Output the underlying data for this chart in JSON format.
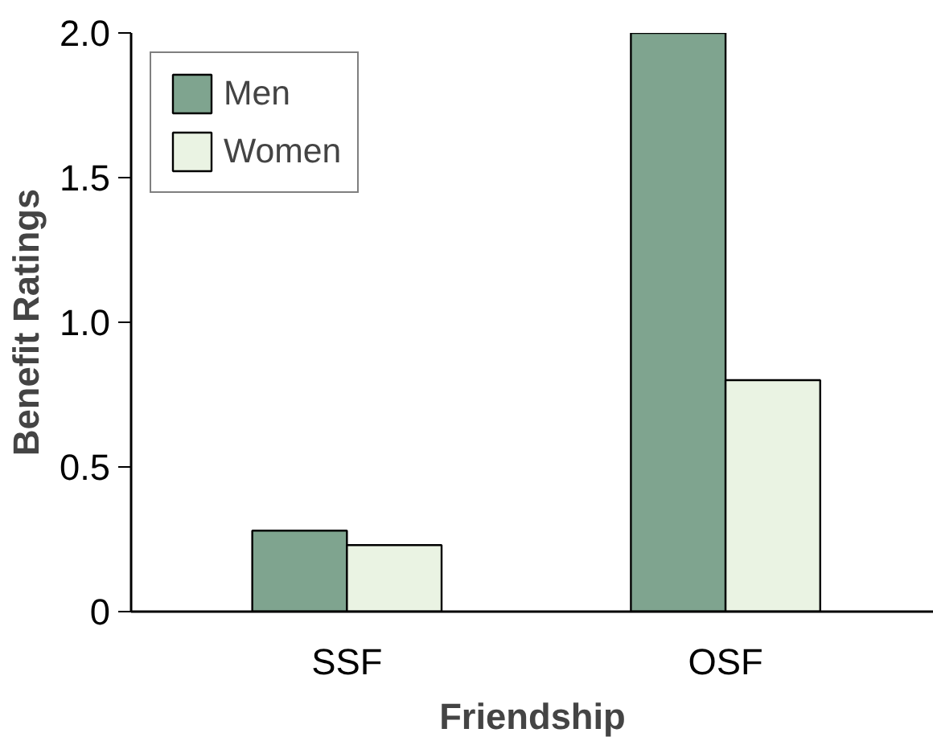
{
  "chart_data": {
    "type": "bar",
    "xlabel": "Friendship",
    "ylabel": "Benefit Ratings",
    "categories": [
      "SSF",
      "OSF"
    ],
    "series": [
      {
        "name": "Men",
        "color": "#7fa48f",
        "values": [
          0.28,
          2.0
        ]
      },
      {
        "name": "Women",
        "color": "#eaf3e3",
        "values": [
          0.23,
          0.8
        ]
      }
    ],
    "ylim": [
      0,
      2.0
    ],
    "yticks": [
      0,
      {
        "value": 0.5,
        "label": "0.5"
      },
      {
        "value": 1.0,
        "label": "1.0"
      },
      {
        "value": 1.5,
        "label": "1.5"
      },
      {
        "value": 2.0,
        "label": "2.0"
      }
    ],
    "grid": false,
    "legend": "top left"
  }
}
